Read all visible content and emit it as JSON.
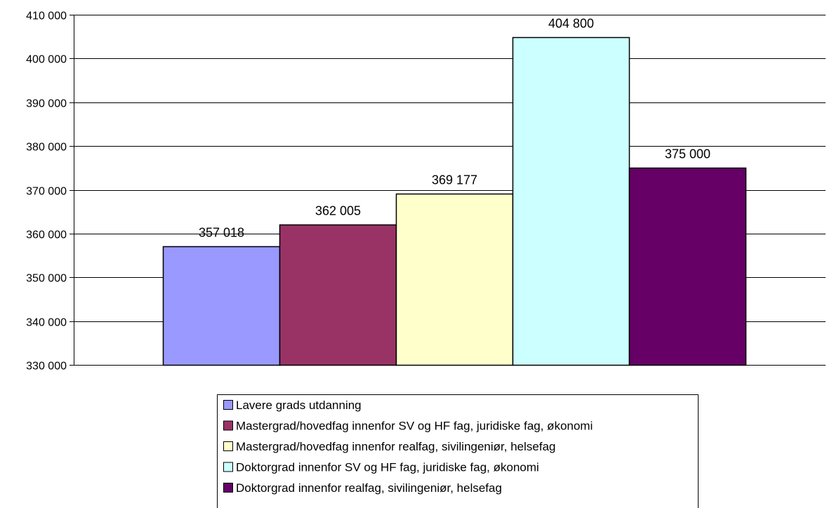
{
  "chart_data": {
    "type": "bar",
    "categories": [
      ""
    ],
    "series": [
      {
        "name": "Lavere grads utdanning",
        "values": [
          357018
        ],
        "color": "#9999ff",
        "value_label": "357 018"
      },
      {
        "name": "Mastergrad/hovedfag innenfor SV og HF fag, juridiske fag, økonomi",
        "values": [
          362005
        ],
        "color": "#993366",
        "value_label": "362 005"
      },
      {
        "name": "Mastergrad/hovedfag innenfor realfag, sivilingeniør, helsefag",
        "values": [
          369177
        ],
        "color": "#ffffcc",
        "value_label": "369 177"
      },
      {
        "name": "Doktorgrad innenfor SV og HF fag, juridiske fag, økonomi",
        "values": [
          404800
        ],
        "color": "#ccffff",
        "value_label": "404 800"
      },
      {
        "name": "Doktorgrad innenfor realfag, sivilingeniør, helsefag",
        "values": [
          375000
        ],
        "color": "#660066",
        "value_label": "375 000"
      }
    ],
    "ylim": [
      330000,
      410000
    ],
    "y_ticks": [
      330000,
      340000,
      350000,
      360000,
      370000,
      380000,
      390000,
      400000,
      410000
    ],
    "y_tick_labels": [
      "330 000",
      "340 000",
      "350 000",
      "360 000",
      "370 000",
      "380 000",
      "390 000",
      "400 000",
      "410 000"
    ],
    "title": "",
    "xlabel": "",
    "ylabel": "",
    "grid": true,
    "legend_position": "bottom"
  }
}
